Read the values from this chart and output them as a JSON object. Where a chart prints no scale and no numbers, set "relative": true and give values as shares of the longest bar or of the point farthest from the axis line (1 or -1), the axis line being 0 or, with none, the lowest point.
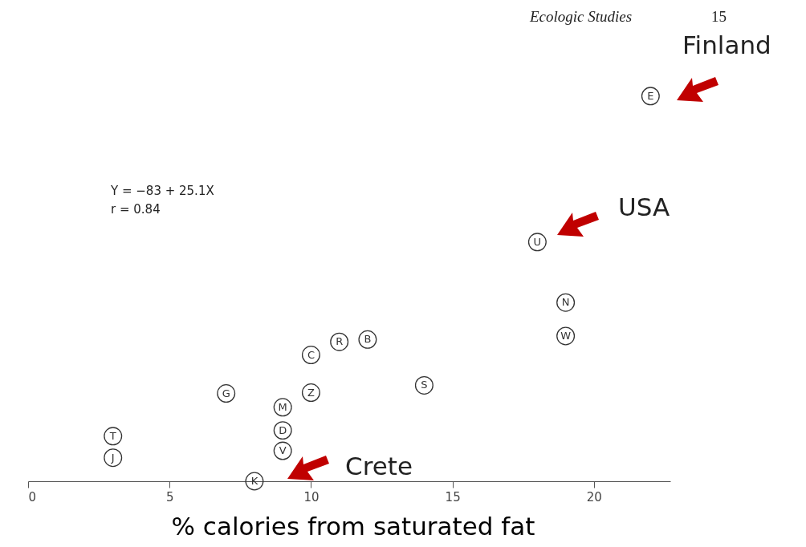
{
  "chart_data": {
    "type": "scatter",
    "relative": true,
    "xlabel": "% calories from saturated fat",
    "xlim": [
      0,
      22.7
    ],
    "xticks": [
      0,
      5,
      10,
      15,
      20
    ],
    "marker": "circle",
    "grid": false,
    "x": [
      22,
      18,
      19,
      19,
      12,
      11,
      10,
      14,
      10,
      7,
      9,
      9,
      9,
      3,
      3,
      8
    ],
    "series": [
      {
        "color": "#333333",
        "values": [
          1,
          0.621,
          0.464,
          0.377,
          0.368,
          0.362,
          0.328,
          0.249,
          0.23,
          0.228,
          0.192,
          0.132,
          0.079,
          0.117,
          0.061,
          0
        ]
      }
    ],
    "annotations": [
      {
        "text": "E",
        "x": 22,
        "y": 1
      },
      {
        "text": "U",
        "x": 18,
        "y": 0.621
      },
      {
        "text": "N",
        "x": 19,
        "y": 0.464
      },
      {
        "text": "W",
        "x": 19,
        "y": 0.377
      },
      {
        "text": "B",
        "x": 12,
        "y": 0.368
      },
      {
        "text": "R",
        "x": 11,
        "y": 0.362
      },
      {
        "text": "C",
        "x": 10,
        "y": 0.328
      },
      {
        "text": "S",
        "x": 14,
        "y": 0.249
      },
      {
        "text": "Z",
        "x": 10,
        "y": 0.23
      },
      {
        "text": "G",
        "x": 7,
        "y": 0.228
      },
      {
        "text": "M",
        "x": 9,
        "y": 0.192
      },
      {
        "text": "D",
        "x": 9,
        "y": 0.132
      },
      {
        "text": "V",
        "x": 9,
        "y": 0.079
      },
      {
        "text": "T",
        "x": 3,
        "y": 0.117
      },
      {
        "text": "J",
        "x": 3,
        "y": 0.061
      },
      {
        "text": "K",
        "x": 8,
        "y": 0
      },
      "Finland",
      "USA",
      "Crete",
      "Ecologic Studies",
      "15",
      "Y = −83 + 25.1X",
      "r = 0.84"
    ]
  }
}
